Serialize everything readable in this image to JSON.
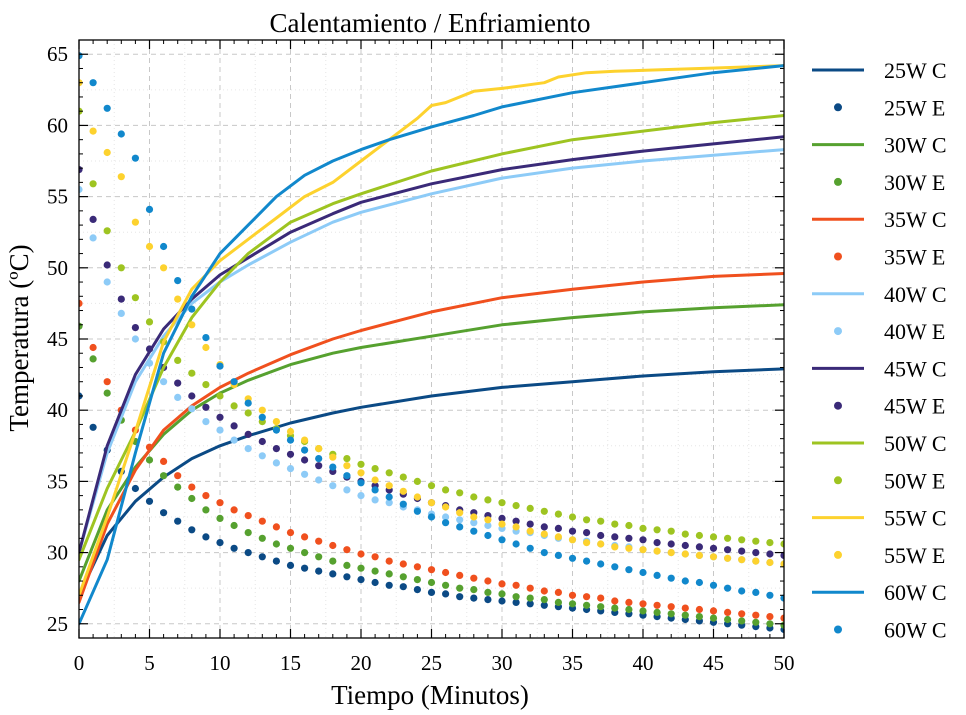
{
  "chart_data": {
    "type": "line",
    "title": "Calentamiento / Enfriamiento",
    "xlabel": "Tiempo (Minutos)",
    "ylabel": "Temperatura (ºC)",
    "xlim": [
      0,
      50
    ],
    "ylim": [
      24,
      66
    ],
    "xticks": [
      0,
      5,
      10,
      15,
      20,
      25,
      30,
      35,
      40,
      45,
      50
    ],
    "yticks": [
      25,
      30,
      35,
      40,
      45,
      50,
      55,
      60,
      65
    ],
    "grid": true,
    "legend_position": "outside-right",
    "series": [
      {
        "name": "25W C",
        "style": "line",
        "color": "#0b4a85",
        "x": [
          0,
          2,
          4,
          6,
          8,
          10,
          12,
          15,
          18,
          20,
          25,
          30,
          35,
          40,
          45,
          50
        ],
        "y": [
          27.0,
          31.2,
          33.6,
          35.3,
          36.6,
          37.5,
          38.2,
          39.1,
          39.8,
          40.2,
          41.0,
          41.6,
          42.0,
          42.4,
          42.7,
          42.9
        ]
      },
      {
        "name": "25W E",
        "style": "points",
        "color": "#0b4a85",
        "x": [
          0,
          1,
          2,
          3,
          4,
          5,
          6,
          7,
          8,
          9,
          10,
          11,
          12,
          13,
          14,
          15,
          16,
          17,
          18,
          19,
          20,
          21,
          22,
          23,
          24,
          25,
          26,
          27,
          28,
          29,
          30,
          31,
          32,
          33,
          34,
          35,
          36,
          37,
          38,
          39,
          40,
          41,
          42,
          43,
          44,
          45,
          46,
          47,
          48,
          49,
          50
        ],
        "y": [
          41.0,
          38.8,
          37.2,
          35.7,
          34.5,
          33.6,
          32.8,
          32.2,
          31.6,
          31.1,
          30.7,
          30.3,
          30.0,
          29.7,
          29.4,
          29.1,
          28.9,
          28.7,
          28.5,
          28.3,
          28.1,
          27.9,
          27.7,
          27.6,
          27.4,
          27.2,
          27.1,
          26.9,
          26.8,
          26.7,
          26.6,
          26.5,
          26.4,
          26.3,
          26.2,
          26.1,
          26.0,
          25.9,
          25.8,
          25.7,
          25.6,
          25.5,
          25.4,
          25.3,
          25.2,
          25.1,
          25.0,
          24.9,
          24.8,
          24.7,
          24.6
        ]
      },
      {
        "name": "30W C",
        "style": "line",
        "color": "#56a12f",
        "x": [
          0,
          2,
          4,
          6,
          8,
          10,
          12,
          15,
          18,
          20,
          25,
          30,
          35,
          40,
          45,
          50
        ],
        "y": [
          28.0,
          33.0,
          36.0,
          38.3,
          40.0,
          41.2,
          42.1,
          43.2,
          44.0,
          44.4,
          45.2,
          46.0,
          46.5,
          46.9,
          47.2,
          47.4
        ]
      },
      {
        "name": "30W E",
        "style": "points",
        "color": "#56a12f",
        "x": [
          0,
          1,
          2,
          3,
          4,
          5,
          6,
          7,
          8,
          9,
          10,
          11,
          12,
          13,
          14,
          15,
          16,
          17,
          18,
          19,
          20,
          21,
          22,
          23,
          24,
          25,
          26,
          27,
          28,
          29,
          30,
          31,
          32,
          33,
          34,
          35,
          36,
          37,
          38,
          39,
          40,
          41,
          42,
          43,
          44,
          45,
          46,
          47,
          48,
          49,
          50
        ],
        "y": [
          45.9,
          43.6,
          41.2,
          39.3,
          37.8,
          36.5,
          35.4,
          34.6,
          33.8,
          33.0,
          32.4,
          31.9,
          31.4,
          31.0,
          30.6,
          30.3,
          30.0,
          29.7,
          29.4,
          29.1,
          28.9,
          28.7,
          28.5,
          28.3,
          28.1,
          27.9,
          27.7,
          27.5,
          27.4,
          27.2,
          27.1,
          26.9,
          26.8,
          26.7,
          26.5,
          26.4,
          26.3,
          26.2,
          26.1,
          26.0,
          25.9,
          25.8,
          25.7,
          25.6,
          25.5,
          25.4,
          25.3,
          25.2,
          25.1,
          25.0,
          24.9
        ]
      },
      {
        "name": "35W C",
        "style": "line",
        "color": "#f0501e",
        "x": [
          0,
          2,
          4,
          6,
          8,
          10,
          12,
          15,
          18,
          20,
          25,
          30,
          35,
          40,
          45,
          50
        ],
        "y": [
          26.5,
          32.0,
          35.8,
          38.6,
          40.3,
          41.6,
          42.6,
          43.9,
          45.0,
          45.6,
          46.9,
          47.9,
          48.5,
          49.0,
          49.4,
          49.6
        ]
      },
      {
        "name": "35W E",
        "style": "points",
        "color": "#f0501e",
        "x": [
          0,
          1,
          2,
          3,
          4,
          5,
          6,
          7,
          8,
          9,
          10,
          11,
          12,
          13,
          14,
          15,
          16,
          17,
          18,
          19,
          20,
          21,
          22,
          23,
          24,
          25,
          26,
          27,
          28,
          29,
          30,
          31,
          32,
          33,
          34,
          35,
          36,
          37,
          38,
          39,
          40,
          41,
          42,
          43,
          44,
          45,
          46,
          47,
          48,
          49,
          50
        ],
        "y": [
          47.5,
          44.4,
          42.0,
          40.0,
          38.6,
          37.4,
          36.4,
          35.4,
          34.6,
          34.0,
          33.5,
          33.0,
          32.6,
          32.2,
          31.8,
          31.4,
          31.1,
          30.8,
          30.5,
          30.2,
          29.9,
          29.7,
          29.4,
          29.2,
          29.0,
          28.8,
          28.6,
          28.4,
          28.2,
          28.0,
          27.8,
          27.7,
          27.5,
          27.3,
          27.2,
          27.0,
          26.9,
          26.8,
          26.6,
          26.5,
          26.4,
          26.3,
          26.2,
          26.1,
          26.0,
          25.9,
          25.8,
          25.7,
          25.6,
          25.5,
          25.4
        ]
      },
      {
        "name": "40W C",
        "style": "line",
        "color": "#8dcbf7",
        "x": [
          0,
          2,
          4,
          6,
          8,
          10,
          12,
          15,
          18,
          20,
          25,
          30,
          35,
          40,
          45,
          50
        ],
        "y": [
          30.0,
          37.0,
          42.0,
          45.2,
          47.5,
          49.0,
          50.2,
          51.8,
          53.2,
          53.9,
          55.2,
          56.3,
          57.0,
          57.5,
          57.9,
          58.3
        ]
      },
      {
        "name": "40W E",
        "style": "points",
        "color": "#8dcbf7",
        "x": [
          0,
          1,
          2,
          3,
          4,
          5,
          6,
          7,
          8,
          9,
          10,
          11,
          12,
          13,
          14,
          15,
          16,
          17,
          18,
          19,
          20,
          21,
          22,
          23,
          24,
          25,
          26,
          27,
          28,
          29,
          30,
          31,
          32,
          33,
          34,
          35,
          36,
          37,
          38,
          39,
          40,
          41,
          42,
          43,
          44,
          45,
          46,
          47,
          48,
          49,
          50
        ],
        "y": [
          55.5,
          52.1,
          49.0,
          46.8,
          45.0,
          43.3,
          42.0,
          40.9,
          40.1,
          39.2,
          38.6,
          37.9,
          37.3,
          36.8,
          36.3,
          35.9,
          35.5,
          35.1,
          34.7,
          34.4,
          34.0,
          33.7,
          33.5,
          33.2,
          33.0,
          32.7,
          32.5,
          32.3,
          32.1,
          31.9,
          31.7,
          31.5,
          31.4,
          31.2,
          31.0,
          30.9,
          30.8,
          30.6,
          30.5,
          30.4,
          30.2,
          30.1,
          30.0,
          29.9,
          29.8,
          29.7,
          29.6,
          29.5,
          29.4,
          29.3,
          29.2
        ]
      },
      {
        "name": "45W C",
        "style": "line",
        "color": "#3a2a78",
        "x": [
          0,
          2,
          4,
          6,
          8,
          10,
          12,
          15,
          18,
          20,
          25,
          30,
          35,
          40,
          45,
          50
        ],
        "y": [
          30.0,
          37.5,
          42.5,
          45.7,
          47.8,
          49.5,
          50.7,
          52.5,
          53.8,
          54.6,
          55.9,
          56.9,
          57.6,
          58.2,
          58.7,
          59.2
        ]
      },
      {
        "name": "45W E",
        "style": "points",
        "color": "#3a2a78",
        "x": [
          0,
          1,
          2,
          3,
          4,
          5,
          6,
          7,
          8,
          9,
          10,
          11,
          12,
          13,
          14,
          15,
          16,
          17,
          18,
          19,
          20,
          21,
          22,
          23,
          24,
          25,
          26,
          27,
          28,
          29,
          30,
          31,
          32,
          33,
          34,
          35,
          36,
          37,
          38,
          39,
          40,
          41,
          42,
          43,
          44,
          45,
          46,
          47,
          48,
          49,
          50
        ],
        "y": [
          56.9,
          53.4,
          50.2,
          47.8,
          45.8,
          44.3,
          43.0,
          41.9,
          41.0,
          40.2,
          39.5,
          38.9,
          38.3,
          37.8,
          37.3,
          36.9,
          36.5,
          36.1,
          35.7,
          35.3,
          35.0,
          34.7,
          34.4,
          34.1,
          33.8,
          33.5,
          33.3,
          33.0,
          32.8,
          32.6,
          32.4,
          32.2,
          32.0,
          31.8,
          31.7,
          31.5,
          31.4,
          31.2,
          31.1,
          31.0,
          30.9,
          30.7,
          30.6,
          30.5,
          30.4,
          30.3,
          30.2,
          30.1,
          30.0,
          29.9,
          29.8
        ]
      },
      {
        "name": "50W C",
        "style": "line",
        "color": "#9ec421",
        "x": [
          0,
          2,
          4,
          6,
          8,
          10,
          12,
          15,
          18,
          20,
          25,
          30,
          35,
          40,
          45,
          50
        ],
        "y": [
          29.5,
          34.5,
          38.5,
          43.0,
          46.5,
          49.0,
          51.0,
          53.2,
          54.5,
          55.2,
          56.8,
          58.0,
          59.0,
          59.6,
          60.2,
          60.7
        ]
      },
      {
        "name": "50W E",
        "style": "points",
        "color": "#9ec421",
        "x": [
          0,
          1,
          2,
          3,
          4,
          5,
          6,
          7,
          8,
          9,
          10,
          11,
          12,
          13,
          14,
          15,
          16,
          17,
          18,
          19,
          20,
          21,
          22,
          23,
          24,
          25,
          26,
          27,
          28,
          29,
          30,
          31,
          32,
          33,
          34,
          35,
          36,
          37,
          38,
          39,
          40,
          41,
          42,
          43,
          44,
          45,
          46,
          47,
          48,
          49,
          50
        ],
        "y": [
          61.0,
          55.9,
          52.6,
          50.0,
          47.9,
          46.2,
          44.8,
          43.5,
          42.6,
          41.8,
          41.0,
          40.3,
          39.8,
          39.2,
          38.7,
          38.2,
          37.8,
          37.3,
          36.9,
          36.6,
          36.2,
          35.9,
          35.6,
          35.3,
          35.0,
          34.7,
          34.4,
          34.2,
          33.9,
          33.7,
          33.5,
          33.3,
          33.1,
          32.9,
          32.7,
          32.5,
          32.3,
          32.2,
          32.0,
          31.9,
          31.7,
          31.6,
          31.5,
          31.3,
          31.2,
          31.1,
          31.0,
          30.9,
          30.8,
          30.7,
          30.6
        ]
      },
      {
        "name": "55W C",
        "style": "line",
        "color": "#fdd22e",
        "x": [
          0,
          2,
          4,
          6,
          8,
          10,
          12,
          14,
          16,
          18,
          20,
          22,
          24,
          25,
          26,
          28,
          30,
          33,
          34,
          36,
          38,
          41,
          44,
          47,
          50
        ],
        "y": [
          27.0,
          32.5,
          38.5,
          44.8,
          48.5,
          50.5,
          52.0,
          53.5,
          55.0,
          56.0,
          57.5,
          59.0,
          60.5,
          61.4,
          61.6,
          62.4,
          62.6,
          63.0,
          63.4,
          63.7,
          63.8,
          63.9,
          64.0,
          64.1,
          64.2
        ]
      },
      {
        "name": "55W E",
        "style": "points",
        "color": "#fdd22e",
        "x": [
          0,
          1,
          2,
          3,
          4,
          5,
          6,
          7,
          8,
          9,
          10,
          11,
          12,
          13,
          14,
          15,
          16,
          17,
          18,
          19,
          20,
          21,
          22,
          23,
          24,
          25,
          26,
          27,
          28,
          29,
          30,
          31,
          32,
          33,
          34,
          35,
          36,
          37,
          38,
          39,
          40,
          41,
          42,
          43,
          44,
          45,
          46,
          47,
          48,
          49,
          50
        ],
        "y": [
          63.0,
          59.6,
          58.1,
          56.4,
          53.2,
          51.5,
          50.0,
          47.8,
          46.0,
          44.4,
          43.2,
          41.8,
          40.8,
          40.0,
          39.2,
          38.5,
          37.9,
          37.3,
          36.7,
          36.1,
          35.6,
          35.1,
          34.7,
          34.3,
          33.9,
          33.5,
          33.2,
          32.8,
          32.5,
          32.3,
          32.0,
          31.8,
          31.5,
          31.3,
          31.1,
          30.9,
          30.7,
          30.6,
          30.4,
          30.3,
          30.2,
          30.1,
          30.0,
          29.9,
          29.8,
          29.7,
          29.6,
          29.5,
          29.4,
          29.3,
          29.2
        ]
      },
      {
        "name": "60W C",
        "style": "line",
        "color": "#1188cc",
        "x": [
          0,
          2,
          4,
          6,
          8,
          10,
          12,
          14,
          16,
          18,
          20,
          22,
          25,
          28,
          30,
          35,
          40,
          45,
          50
        ],
        "y": [
          25.0,
          29.5,
          37.0,
          44.0,
          48.0,
          51.0,
          53.0,
          55.0,
          56.5,
          57.5,
          58.3,
          59.0,
          59.9,
          60.7,
          61.3,
          62.3,
          63.0,
          63.7,
          64.2
        ]
      },
      {
        "name": "60W C",
        "style": "points",
        "color": "#1188cc",
        "x": [
          0,
          1,
          2,
          3,
          4,
          5,
          6,
          7,
          8,
          9,
          10,
          11,
          12,
          13,
          14,
          15,
          16,
          17,
          18,
          19,
          20,
          21,
          22,
          23,
          24,
          25,
          26,
          27,
          28,
          29,
          30,
          31,
          32,
          33,
          34,
          35,
          36,
          37,
          38,
          39,
          40,
          41,
          42,
          43,
          44,
          45,
          46,
          47,
          48,
          49,
          50
        ],
        "y": [
          64.9,
          63.0,
          61.2,
          59.4,
          57.7,
          54.1,
          51.5,
          49.1,
          47.1,
          45.1,
          43.1,
          42.0,
          40.5,
          39.5,
          38.6,
          37.9,
          37.2,
          36.6,
          36.0,
          35.4,
          34.9,
          34.4,
          33.9,
          33.4,
          32.9,
          32.5,
          32.1,
          31.8,
          31.5,
          31.2,
          30.9,
          30.6,
          30.3,
          30.0,
          29.8,
          29.6,
          29.4,
          29.2,
          29.0,
          28.8,
          28.6,
          28.4,
          28.2,
          28.0,
          27.9,
          27.7,
          27.5,
          27.3,
          27.2,
          27.0,
          26.8
        ]
      }
    ]
  }
}
